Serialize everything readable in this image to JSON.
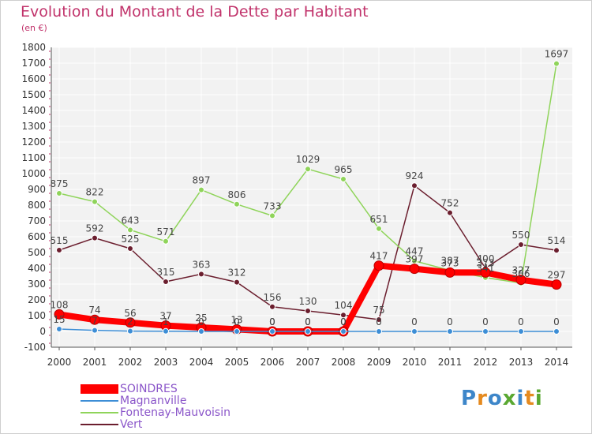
{
  "title": "Evolution du Montant de la Dette par Habitant",
  "subtitle": "(en €)",
  "logo": {
    "text": "Proxiti",
    "colors": [
      "#3d86c9",
      "#e58a1f",
      "#3d86c9",
      "#5aa832",
      "#3d86c9",
      "#e58a1f",
      "#5aa832"
    ]
  },
  "chart_data": {
    "type": "line",
    "title": "Evolution du Montant de la Dette par Habitant",
    "subtitle": "(en €)",
    "xlabel": "",
    "ylabel": "",
    "x": [
      "2000",
      "2001",
      "2002",
      "2003",
      "2004",
      "2005",
      "2006",
      "2007",
      "2008",
      "2009",
      "2010",
      "2011",
      "2012",
      "2013",
      "2014"
    ],
    "ylim": [
      -100,
      1800
    ],
    "yticks": [
      -100,
      0,
      100,
      200,
      300,
      400,
      500,
      600,
      700,
      800,
      900,
      1000,
      1100,
      1200,
      1300,
      1400,
      1500,
      1600,
      1700,
      1800
    ],
    "grid": true,
    "legend_position": "bottom-left",
    "series": [
      {
        "name": "SOINDRES",
        "color": "#ff0000",
        "values": [
          108,
          74,
          56,
          37,
          25,
          13,
          0,
          0,
          0,
          417,
          397,
          373,
          373,
          327,
          297
        ]
      },
      {
        "name": "Magnanville",
        "color": "#3d8ed6",
        "values": [
          15,
          7,
          2,
          1,
          0,
          0,
          0,
          0,
          0,
          0,
          0,
          0,
          0,
          0,
          0
        ]
      },
      {
        "name": "Fontenay-Mauvoisin",
        "color": "#8fd45a",
        "values": [
          875,
          822,
          643,
          571,
          897,
          806,
          733,
          1029,
          965,
          651,
          447,
          387,
          341,
          306,
          1697
        ]
      },
      {
        "name": "Vert",
        "color": "#6b1e2e",
        "values": [
          515,
          592,
          525,
          315,
          363,
          312,
          156,
          130,
          104,
          75,
          924,
          752,
          400,
          550,
          514
        ]
      }
    ]
  }
}
